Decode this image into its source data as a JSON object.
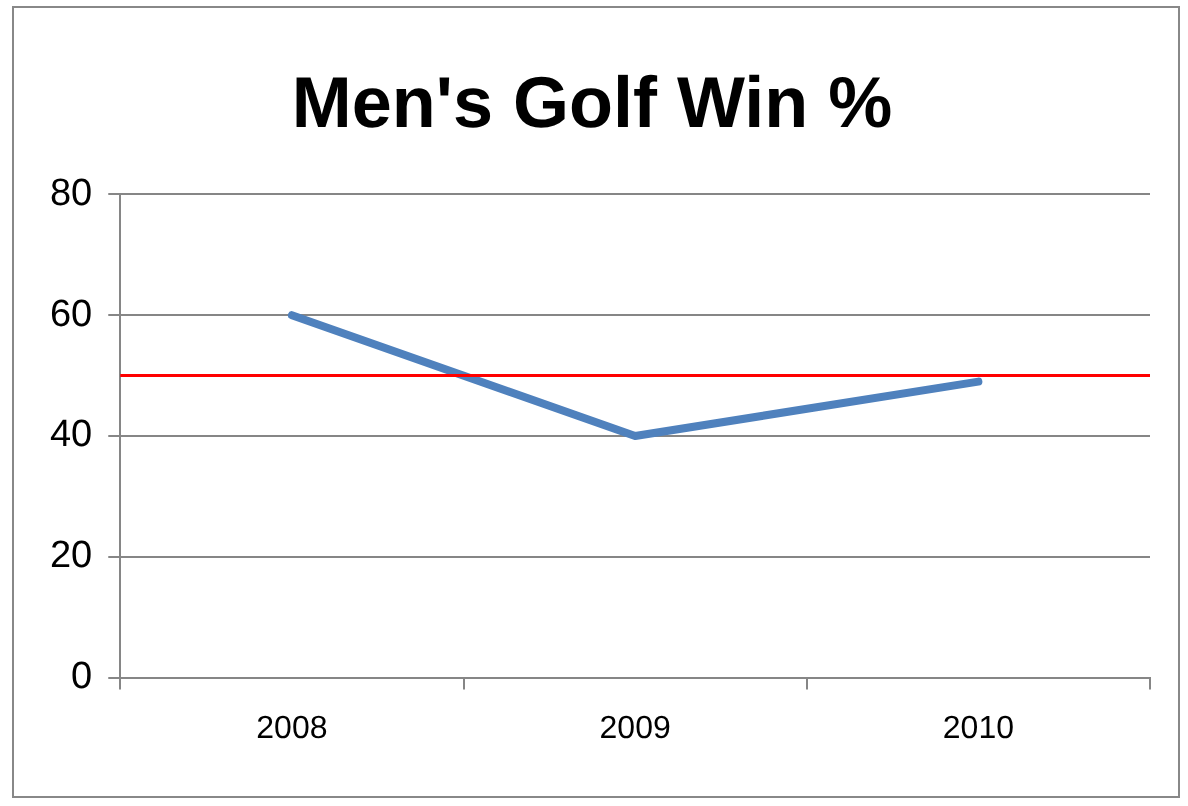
{
  "chart_data": {
    "type": "line",
    "title": "Men's Golf Win %",
    "categories": [
      "2008",
      "2009",
      "2010"
    ],
    "series": [
      {
        "color": "#4f81bd",
        "values": [
          60,
          40,
          49
        ]
      }
    ],
    "ylim": [
      0,
      80
    ],
    "yticks": [
      0,
      20,
      40,
      60,
      80
    ],
    "grid": "y",
    "legend": false,
    "marker": "none",
    "ref_lines": [
      {
        "axis": "y",
        "value": 50,
        "color": "#ff0000"
      }
    ]
  }
}
